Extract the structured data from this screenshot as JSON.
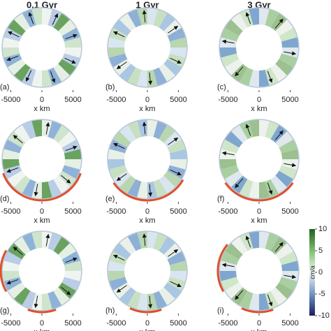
{
  "figure": {
    "columns": [
      "0.1 Gyr",
      "1 Gyr",
      "3 Gyr"
    ],
    "panels": [
      "(a)",
      "(b)",
      "(c)",
      "(d)",
      "(e)",
      "(f)",
      "(g)",
      "(h)",
      "(i)"
    ],
    "xlim": [
      -6400,
      6400
    ],
    "xticks": [
      -5000,
      0,
      5000
    ],
    "xlabel": "x km",
    "colorbar": {
      "label": "cm/a",
      "lim": [
        -10,
        10
      ],
      "ticks": [
        10,
        5,
        0,
        -5,
        -10
      ]
    }
  }
}
